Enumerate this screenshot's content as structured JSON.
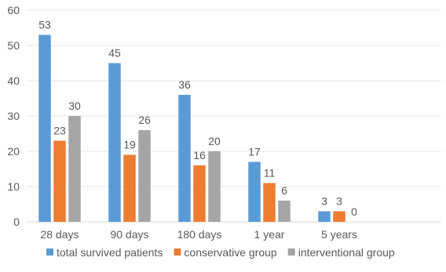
{
  "chart_data": {
    "type": "bar",
    "categories": [
      "28 days",
      "90 days",
      "180 days",
      "1 year",
      "5 years"
    ],
    "series": [
      {
        "name": "total survived patients",
        "values": [
          53,
          45,
          36,
          17,
          3
        ],
        "color": "#5B9BD5"
      },
      {
        "name": "conservative group",
        "values": [
          23,
          19,
          16,
          11,
          3
        ],
        "color": "#ED7D31"
      },
      {
        "name": "interventional group",
        "values": [
          30,
          26,
          20,
          6,
          0
        ],
        "color": "#A5A5A5"
      }
    ],
    "ylim": [
      0,
      60
    ],
    "yticks": [
      0,
      10,
      20,
      30,
      40,
      50,
      60
    ],
    "grid": true,
    "legend_position": "bottom",
    "data_labels": true,
    "title": "",
    "xlabel": "",
    "ylabel": ""
  }
}
